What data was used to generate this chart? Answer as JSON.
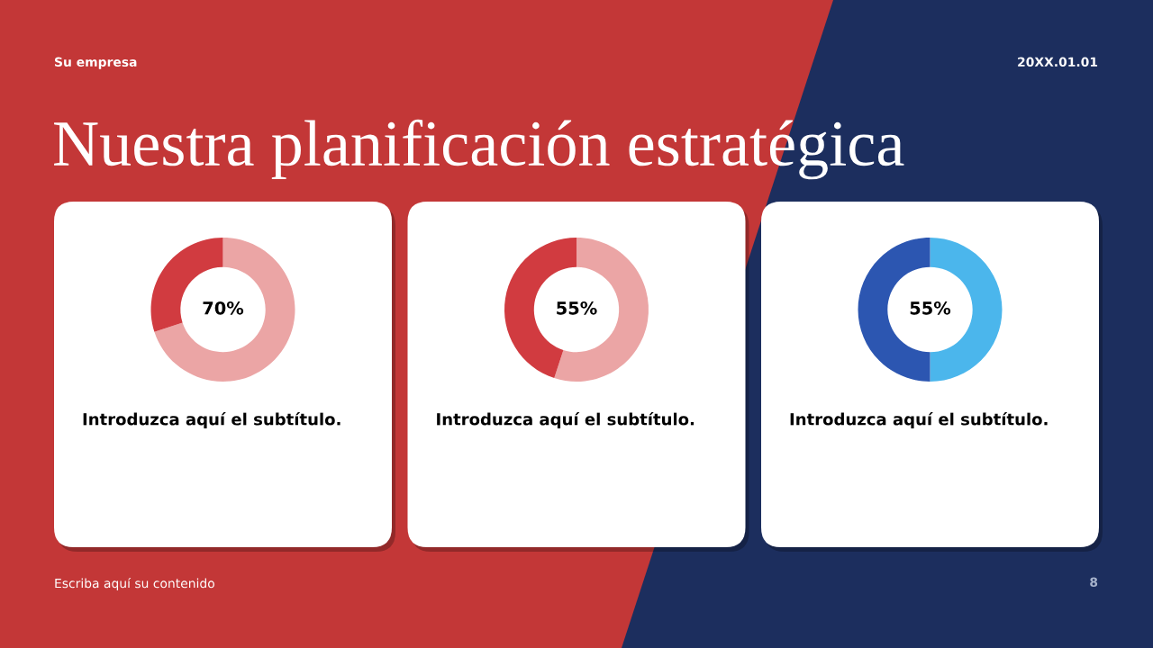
{
  "chart_data": [
    {
      "type": "other",
      "title": "Nuestra planificación estratégica",
      "annotations": [
        "Su empresa",
        "20XX.01.01",
        "Escriba aquí su contenido",
        "8"
      ]
    },
    {
      "type": "donut",
      "categories": [
        null,
        null
      ],
      "values": [
        70,
        30
      ],
      "colors": [
        "#eba5a5",
        "#d13b40"
      ],
      "annotations": [
        "70%"
      ],
      "subtitle": "Introduzca aquí el subtítulo."
    },
    {
      "type": "donut",
      "categories": [
        null,
        null
      ],
      "values": [
        55,
        45
      ],
      "colors": [
        "#eba5a5",
        "#d13b40"
      ],
      "annotations": [
        "55%"
      ],
      "subtitle": "Introduzca aquí el subtítulo."
    },
    {
      "type": "donut",
      "categories": [
        null,
        null
      ],
      "values": [
        50,
        50
      ],
      "colors": [
        "#4bb6ec",
        "#2c56b1"
      ],
      "annotations": [
        "55%"
      ],
      "subtitle": "Introduzca aquí el subtítulo."
    }
  ]
}
